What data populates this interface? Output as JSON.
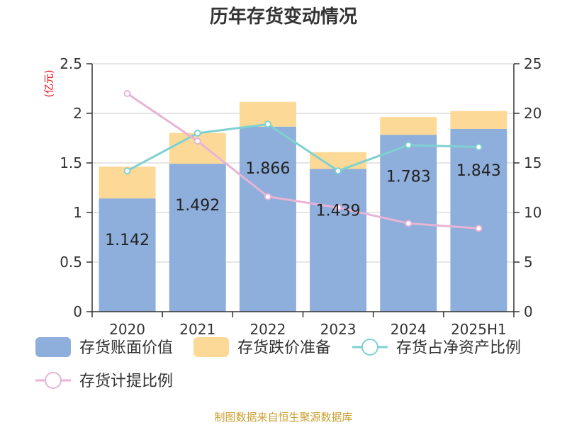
{
  "chart_data": {
    "type": "bar",
    "title": "历年存货变动情况",
    "categories": [
      "2020",
      "2021",
      "2022",
      "2023",
      "2024",
      "2025H1"
    ],
    "left_axis": {
      "unit_label": "(亿元)",
      "ylim": [
        0,
        2.5
      ],
      "ticks": [
        "0",
        "0.5",
        "1",
        "1.5",
        "2",
        "2.5"
      ]
    },
    "right_axis": {
      "ylim": [
        0,
        25
      ],
      "ticks": [
        "0",
        "5",
        "10",
        "15",
        "20",
        "25"
      ]
    },
    "grid": true,
    "series": [
      {
        "name": "存货账面价值",
        "kind": "stacked-bar",
        "axis": "left",
        "color": "#8eaedb",
        "values": [
          1.142,
          1.492,
          1.866,
          1.439,
          1.783,
          1.843
        ]
      },
      {
        "name": "存货跌价准备",
        "kind": "stacked-bar",
        "axis": "left",
        "color": "#fdd998",
        "values": [
          0.32,
          0.31,
          0.25,
          0.17,
          0.18,
          0.18
        ]
      },
      {
        "name": "存货占净资产比例",
        "kind": "line",
        "axis": "right",
        "color": "#7fd1d1",
        "values": [
          14.2,
          18.0,
          18.9,
          14.2,
          16.8,
          16.6
        ]
      },
      {
        "name": "存货计提比例",
        "kind": "line",
        "axis": "right",
        "color": "#e8b4d6",
        "values": [
          22.0,
          17.2,
          11.6,
          10.5,
          8.9,
          8.4
        ]
      }
    ],
    "data_labels": [
      "1.142",
      "1.492",
      "1.866",
      "1.439",
      "1.783",
      "1.843"
    ],
    "legend_position": "bottom-left"
  },
  "source": "制图数据来自恒生聚源数据库"
}
